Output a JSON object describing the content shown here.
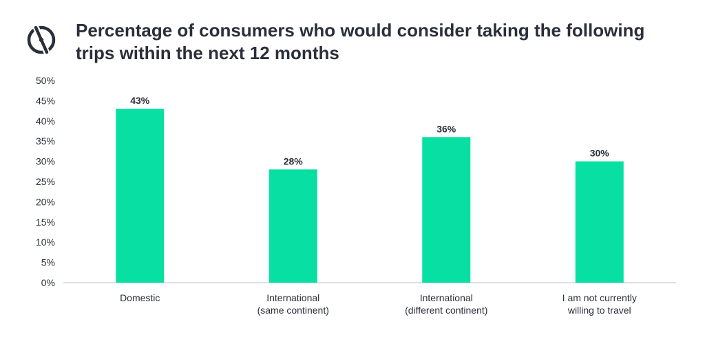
{
  "page": {
    "title": "Percentage of consumers who would consider taking the following trips within the next 12 months"
  },
  "logo": {
    "icon": "compass-logo-icon"
  },
  "colors": {
    "bar": "#07e0a2",
    "text": "#2a2f3a",
    "axis": "#bfbfbf"
  },
  "chart_data": {
    "type": "bar",
    "title": "Percentage of consumers who would consider taking the following trips within the next 12 months",
    "xlabel": "",
    "ylabel": "",
    "categories": [
      [
        "Domestic"
      ],
      [
        "International",
        "(same continent)"
      ],
      [
        "International",
        "(different continent)"
      ],
      [
        "I am not currently",
        "willing to travel"
      ]
    ],
    "values": [
      43,
      28,
      36,
      30
    ],
    "data_labels": [
      "43%",
      "28%",
      "36%",
      "30%"
    ],
    "ylim": [
      0,
      50
    ],
    "yticks": [
      0,
      5,
      10,
      15,
      20,
      25,
      30,
      35,
      40,
      45,
      50
    ],
    "ytick_labels": [
      "0%",
      "5%",
      "10%",
      "15%",
      "20%",
      "25%",
      "30%",
      "35%",
      "40%",
      "45%",
      "50%"
    ],
    "grid": false,
    "legend": "none"
  }
}
